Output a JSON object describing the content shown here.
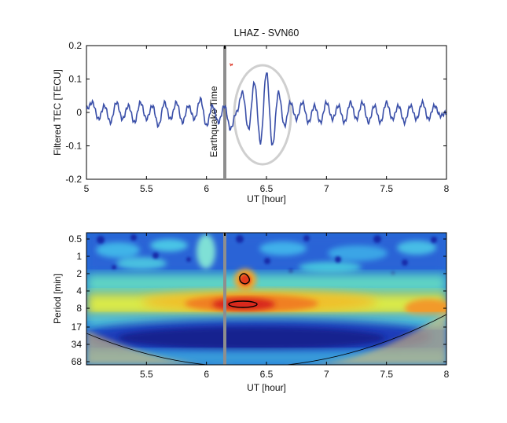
{
  "chart_data": [
    {
      "type": "line",
      "title": "LHAZ - SVN60",
      "xlabel": "UT [hour]",
      "ylabel": "Filtered TEC [TECU]",
      "xlim": [
        5,
        8
      ],
      "ylim": [
        -0.2,
        0.2
      ],
      "x_ticks": [
        "5",
        "5.5",
        "6",
        "6.5",
        "7",
        "7.5",
        "8"
      ],
      "y_ticks": [
        "0.2",
        "0.1",
        "0",
        "-0.1",
        "-0.2"
      ],
      "grid": false,
      "series_color": "#3a4fa8",
      "series": [
        {
          "x": [
            5.0,
            5.05,
            5.1,
            5.15,
            5.2,
            5.25,
            5.3,
            5.35,
            5.4,
            5.45,
            5.5,
            5.55,
            5.6,
            5.65,
            5.7,
            5.75,
            5.8,
            5.85,
            5.9,
            5.95,
            6.0,
            6.05,
            6.1,
            6.15,
            6.2,
            6.25,
            6.3,
            6.35,
            6.4,
            6.45,
            6.5,
            6.55,
            6.6,
            6.65,
            6.7,
            6.75,
            6.8,
            6.85,
            6.9,
            6.95,
            7.0,
            7.05,
            7.1,
            7.15,
            7.2,
            7.25,
            7.3,
            7.35,
            7.4,
            7.45,
            7.5,
            7.55,
            7.6,
            7.65,
            7.7,
            7.75,
            7.8,
            7.85,
            7.9,
            7.95,
            8.0
          ],
          "values": [
            0.01,
            0.03,
            -0.02,
            0.02,
            -0.03,
            0.03,
            -0.02,
            0.02,
            -0.03,
            0.03,
            -0.02,
            0.02,
            -0.04,
            0.03,
            -0.02,
            0.03,
            -0.03,
            0.02,
            -0.02,
            0.04,
            -0.04,
            0.02,
            -0.03,
            0.02,
            -0.05,
            0.0,
            0.06,
            -0.05,
            0.09,
            -0.09,
            0.12,
            -0.1,
            0.06,
            -0.04,
            0.03,
            -0.02,
            0.03,
            -0.03,
            0.02,
            -0.03,
            0.03,
            -0.02,
            0.02,
            -0.03,
            0.03,
            -0.02,
            0.03,
            -0.03,
            0.02,
            -0.03,
            0.03,
            -0.02,
            0.02,
            -0.03,
            0.02,
            -0.02,
            0.03,
            -0.02,
            0.02,
            -0.01,
            0.0
          ]
        }
      ],
      "event_line_x": 6.17,
      "event_label": "Earthquake Time",
      "annotations": [
        "ellipse around disturbance 6.25-6.75 UT"
      ]
    },
    {
      "type": "heatmap",
      "title": "",
      "xlabel": "UT [hour]",
      "ylabel": "Period [min]",
      "xlim": [
        5,
        8
      ],
      "x_ticks": [
        "5.5",
        "6",
        "6.5",
        "7",
        "7.5",
        "8"
      ],
      "y_ticks": [
        "0.5",
        "1",
        "2",
        "4",
        "8",
        "17",
        "34",
        "68"
      ],
      "colormap": "jet",
      "event_line_x": 6.17,
      "cone_of_influence": true,
      "highlight_bands": [
        {
          "period_min": 6.5,
          "strength": "high",
          "ut_range": [
            5.7,
            7.0
          ]
        },
        {
          "period_min": 2.5,
          "strength": "high",
          "ut_range": [
            6.2,
            6.45
          ]
        }
      ],
      "significance_contours": [
        {
          "ut_center": 6.33,
          "period_min": 6.5
        },
        {
          "ut_center": 6.33,
          "period_min": 2.5
        }
      ],
      "low_power_region": {
        "period_range_min": [
          17,
          34
        ],
        "ut_range": [
          5.3,
          7.6
        ]
      }
    }
  ]
}
